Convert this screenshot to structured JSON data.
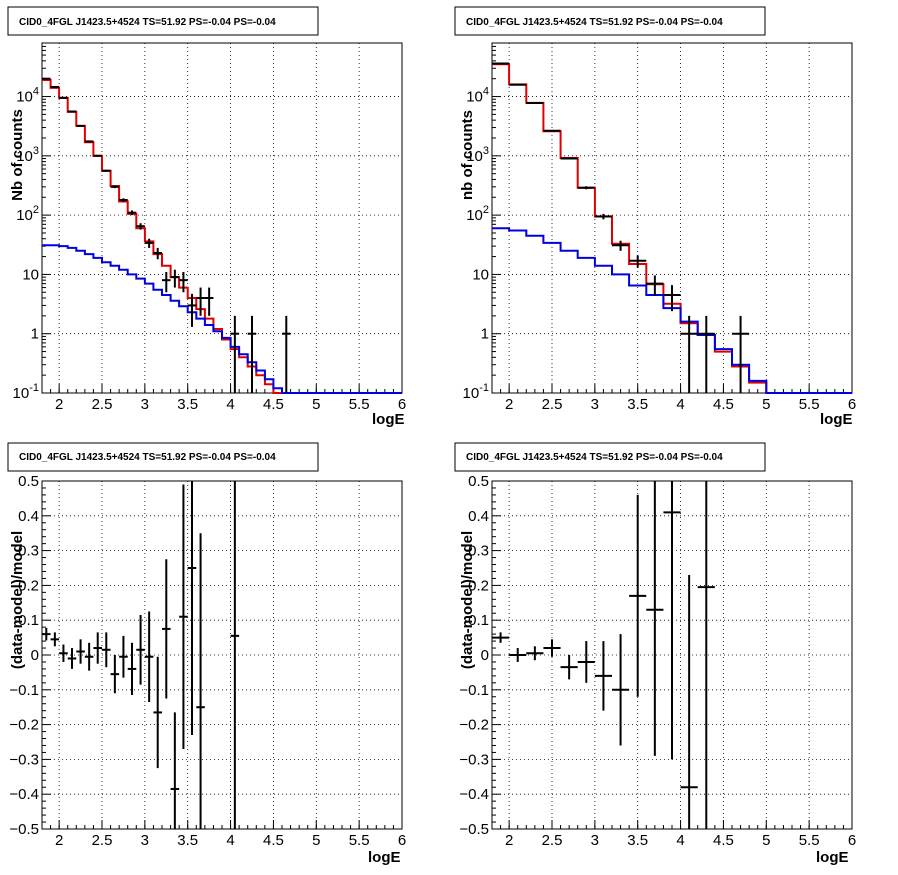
{
  "colors": {
    "data": "#000000",
    "total_model": "#e00000",
    "component_model": "#0000e0",
    "grid": "#000000",
    "background": "#ffffff"
  },
  "chart_data": [
    {
      "type": "line",
      "title": "CID0_4FGL J1423.5+4524 TS=51.92 PS=-0.04 PS=-0.04",
      "xlabel": "logE",
      "ylabel": "Nb of counts",
      "xlim": [
        1.8,
        6.0
      ],
      "ylim": [
        0.1,
        80000
      ],
      "yscale": "log",
      "grid": true,
      "x_ticks": [
        "2",
        "2.5",
        "3",
        "3.5",
        "4",
        "4.5",
        "5",
        "5.5",
        "6"
      ],
      "y_ticks": [
        "10^-1",
        "1",
        "10",
        "10^2",
        "10^3",
        "10^4"
      ],
      "bin_edges": [
        1.8,
        1.9,
        2.0,
        2.1,
        2.2,
        2.3,
        2.4,
        2.5,
        2.6,
        2.7,
        2.8,
        2.9,
        3.0,
        3.1,
        3.2,
        3.3,
        3.4,
        3.5,
        3.6,
        3.7,
        3.8,
        3.9,
        4.0,
        4.1,
        4.2,
        4.3,
        4.4,
        4.5,
        4.6,
        4.7,
        4.8,
        4.9,
        5.0,
        5.1,
        5.2,
        5.3,
        5.4,
        5.5,
        5.6,
        5.7,
        5.8,
        5.9,
        6.0
      ],
      "series": [
        {
          "role": "total_model",
          "values": [
            19000,
            14000,
            9500,
            5500,
            3200,
            1700,
            1000,
            560,
            310,
            170,
            105,
            60,
            36,
            22,
            14,
            9,
            6,
            4,
            2.6,
            1.8,
            1.2,
            0.8,
            0.55,
            0.4,
            0.28,
            0.2,
            0.14,
            0.1,
            0.1,
            0.1,
            0.1,
            0.1,
            0.1,
            0.1,
            0.1,
            0.1,
            0.1,
            0.1,
            0.1,
            0.1,
            0.1,
            0.1
          ]
        },
        {
          "role": "component_model",
          "values": [
            31,
            31,
            30,
            28,
            25,
            22,
            19,
            16,
            14,
            12,
            10,
            8.5,
            7,
            5.5,
            4.5,
            3.6,
            2.9,
            2.3,
            1.8,
            1.4,
            1.1,
            0.85,
            0.6,
            0.45,
            0.33,
            0.24,
            0.17,
            0.12,
            0.1,
            0.1,
            0.1,
            0.1,
            0.1,
            0.1,
            0.1,
            0.1,
            0.1,
            0.1,
            0.1,
            0.1,
            0.1,
            0.1
          ]
        },
        {
          "role": "data",
          "points": [
            {
              "x": 1.85,
              "y": 20000,
              "lo": 19800,
              "hi": 20200
            },
            {
              "x": 1.95,
              "y": 14500,
              "lo": 14300,
              "hi": 14700
            },
            {
              "x": 2.05,
              "y": 9500,
              "lo": 9400,
              "hi": 9600
            },
            {
              "x": 2.15,
              "y": 5600,
              "lo": 5500,
              "hi": 5700
            },
            {
              "x": 2.25,
              "y": 3200,
              "lo": 3150,
              "hi": 3250
            },
            {
              "x": 2.35,
              "y": 1750,
              "lo": 1700,
              "hi": 1800
            },
            {
              "x": 2.45,
              "y": 1000,
              "lo": 970,
              "hi": 1030
            },
            {
              "x": 2.55,
              "y": 560,
              "lo": 540,
              "hi": 580
            },
            {
              "x": 2.65,
              "y": 300,
              "lo": 285,
              "hi": 315
            },
            {
              "x": 2.75,
              "y": 180,
              "lo": 168,
              "hi": 192
            },
            {
              "x": 2.85,
              "y": 110,
              "lo": 100,
              "hi": 120
            },
            {
              "x": 2.95,
              "y": 65,
              "lo": 57,
              "hi": 73
            },
            {
              "x": 3.05,
              "y": 34,
              "lo": 28,
              "hi": 40
            },
            {
              "x": 3.15,
              "y": 23,
              "lo": 18,
              "hi": 28
            },
            {
              "x": 3.25,
              "y": 8,
              "lo": 5,
              "hi": 11
            },
            {
              "x": 3.35,
              "y": 9,
              "lo": 6,
              "hi": 12
            },
            {
              "x": 3.45,
              "y": 8,
              "lo": 5,
              "hi": 11
            },
            {
              "x": 3.55,
              "y": 3,
              "lo": 1.3,
              "hi": 4.7
            },
            {
              "x": 3.65,
              "y": 4,
              "lo": 2,
              "hi": 6
            },
            {
              "x": 3.75,
              "y": 4,
              "lo": 2,
              "hi": 6
            },
            {
              "x": 4.05,
              "y": 1,
              "lo": 0.05,
              "hi": 2
            },
            {
              "x": 4.25,
              "y": 1,
              "lo": 0.05,
              "hi": 2
            },
            {
              "x": 4.65,
              "y": 1,
              "lo": 0.05,
              "hi": 2
            }
          ]
        }
      ]
    },
    {
      "type": "line",
      "title": "CID0_4FGL J1423.5+4524 TS=51.92 PS=-0.04 PS=-0.04",
      "xlabel": "logE",
      "ylabel": "nb of counts",
      "xlim": [
        1.8,
        6.0
      ],
      "ylim": [
        0.1,
        80000
      ],
      "yscale": "log",
      "grid": true,
      "x_ticks": [
        "2",
        "2.5",
        "3",
        "3.5",
        "4",
        "4.5",
        "5",
        "5.5",
        "6"
      ],
      "y_ticks": [
        "10^-1",
        "1",
        "10",
        "10^2",
        "10^3",
        "10^4"
      ],
      "bin_edges": [
        1.8,
        2.0,
        2.2,
        2.4,
        2.6,
        2.8,
        3.0,
        3.2,
        3.4,
        3.6,
        3.8,
        4.0,
        4.2,
        4.4,
        4.6,
        4.8,
        5.0,
        5.2,
        5.4,
        5.6,
        5.8,
        6.0
      ],
      "series": [
        {
          "role": "total_model",
          "values": [
            35000,
            16000,
            7800,
            2600,
            920,
            290,
            95,
            33,
            15,
            6.8,
            3.2,
            1.5,
            0.95,
            0.5,
            0.28,
            0.15,
            0.1,
            0.1,
            0.1,
            0.1,
            0.1
          ]
        },
        {
          "role": "component_model",
          "values": [
            60,
            55,
            45,
            34,
            25,
            19,
            14,
            10,
            6.5,
            4.5,
            2.7,
            1.6,
            0.95,
            0.55,
            0.3,
            0.16,
            0.1,
            0.1,
            0.1,
            0.1,
            0.1
          ]
        },
        {
          "role": "data",
          "points": [
            {
              "x": 1.9,
              "y": 36000,
              "lo": 35500,
              "hi": 36500
            },
            {
              "x": 2.1,
              "y": 15800,
              "lo": 15600,
              "hi": 16000
            },
            {
              "x": 2.3,
              "y": 7800,
              "lo": 7700,
              "hi": 7900
            },
            {
              "x": 2.5,
              "y": 2650,
              "lo": 2600,
              "hi": 2700
            },
            {
              "x": 2.7,
              "y": 900,
              "lo": 870,
              "hi": 930
            },
            {
              "x": 2.9,
              "y": 290,
              "lo": 273,
              "hi": 307
            },
            {
              "x": 3.1,
              "y": 95,
              "lo": 85,
              "hi": 105
            },
            {
              "x": 3.3,
              "y": 31,
              "lo": 25,
              "hi": 37
            },
            {
              "x": 3.5,
              "y": 17,
              "lo": 13,
              "hi": 21
            },
            {
              "x": 3.7,
              "y": 7,
              "lo": 4.4,
              "hi": 9.6
            },
            {
              "x": 3.9,
              "y": 4.5,
              "lo": 2.4,
              "hi": 6.6
            },
            {
              "x": 4.1,
              "y": 1,
              "lo": 0.05,
              "hi": 2
            },
            {
              "x": 4.3,
              "y": 1,
              "lo": 0.05,
              "hi": 2
            },
            {
              "x": 4.7,
              "y": 1,
              "lo": 0.05,
              "hi": 2
            }
          ]
        }
      ]
    },
    {
      "type": "scatter",
      "title": "CID0_4FGL J1423.5+4524 TS=51.92 PS=-0.04 PS=-0.04",
      "xlabel": "logE",
      "ylabel": "(data-model)/model",
      "xlim": [
        1.8,
        6.0
      ],
      "ylim": [
        -0.5,
        0.5
      ],
      "grid": true,
      "x_ticks": [
        "2",
        "2.5",
        "3",
        "3.5",
        "4",
        "4.5",
        "5",
        "5.5",
        "6"
      ],
      "y_ticks": [
        "−0.5",
        "−0.4",
        "−0.3",
        "−0.2",
        "−0.1",
        "0",
        "0.1",
        "0.2",
        "0.3",
        "0.4",
        "0.5"
      ],
      "points": [
        {
          "x": 1.85,
          "y": 0.06,
          "err": 0.018
        },
        {
          "x": 1.95,
          "y": 0.045,
          "err": 0.02
        },
        {
          "x": 2.05,
          "y": 0.005,
          "err": 0.025
        },
        {
          "x": 2.15,
          "y": -0.01,
          "err": 0.03
        },
        {
          "x": 2.25,
          "y": 0.01,
          "err": 0.035
        },
        {
          "x": 2.35,
          "y": -0.005,
          "err": 0.04
        },
        {
          "x": 2.45,
          "y": 0.02,
          "err": 0.045
        },
        {
          "x": 2.55,
          "y": 0.015,
          "err": 0.05
        },
        {
          "x": 2.65,
          "y": -0.055,
          "err": 0.055
        },
        {
          "x": 2.75,
          "y": -0.005,
          "err": 0.06
        },
        {
          "x": 2.85,
          "y": -0.04,
          "err": 0.075
        },
        {
          "x": 2.95,
          "y": 0.015,
          "err": 0.1
        },
        {
          "x": 3.05,
          "y": -0.005,
          "err": 0.13
        },
        {
          "x": 3.15,
          "y": -0.165,
          "err": 0.16
        },
        {
          "x": 3.25,
          "y": 0.075,
          "err": 0.2
        },
        {
          "x": 3.35,
          "y": -0.385,
          "err": 0.22
        },
        {
          "x": 3.45,
          "y": 0.11,
          "err": 0.38
        },
        {
          "x": 3.55,
          "y": 0.25,
          "err": 0.48
        },
        {
          "x": 3.65,
          "y": -0.15,
          "err": 0.5
        },
        {
          "x": 4.05,
          "y": 0.055,
          "err": 0.6
        }
      ]
    },
    {
      "type": "scatter",
      "title": "CID0_4FGL J1423.5+4524 TS=51.92 PS=-0.04 PS=-0.04",
      "xlabel": "logE",
      "ylabel": "(data-model)/model",
      "xlim": [
        1.8,
        6.0
      ],
      "ylim": [
        -0.5,
        0.5
      ],
      "grid": true,
      "x_ticks": [
        "2",
        "2.5",
        "3",
        "3.5",
        "4",
        "4.5",
        "5",
        "5.5",
        "6"
      ],
      "y_ticks": [
        "−0.5",
        "−0.4",
        "−0.3",
        "−0.2",
        "−0.1",
        "0",
        "0.1",
        "0.2",
        "0.3",
        "0.4",
        "0.5"
      ],
      "points": [
        {
          "x": 1.9,
          "y": 0.05,
          "err": 0.015
        },
        {
          "x": 2.1,
          "y": 0.0,
          "err": 0.02
        },
        {
          "x": 2.3,
          "y": 0.005,
          "err": 0.02
        },
        {
          "x": 2.5,
          "y": 0.02,
          "err": 0.025
        },
        {
          "x": 2.7,
          "y": -0.035,
          "err": 0.035
        },
        {
          "x": 2.9,
          "y": -0.02,
          "err": 0.06
        },
        {
          "x": 3.1,
          "y": -0.06,
          "err": 0.1
        },
        {
          "x": 3.3,
          "y": -0.1,
          "err": 0.16
        },
        {
          "x": 3.5,
          "y": 0.17,
          "err": 0.29
        },
        {
          "x": 3.7,
          "y": 0.13,
          "err": 0.42
        },
        {
          "x": 3.9,
          "y": 0.41,
          "err": 0.71
        },
        {
          "x": 4.1,
          "y": -0.38,
          "err": 0.61
        },
        {
          "x": 4.3,
          "y": 0.195,
          "err": 0.9
        }
      ]
    }
  ]
}
